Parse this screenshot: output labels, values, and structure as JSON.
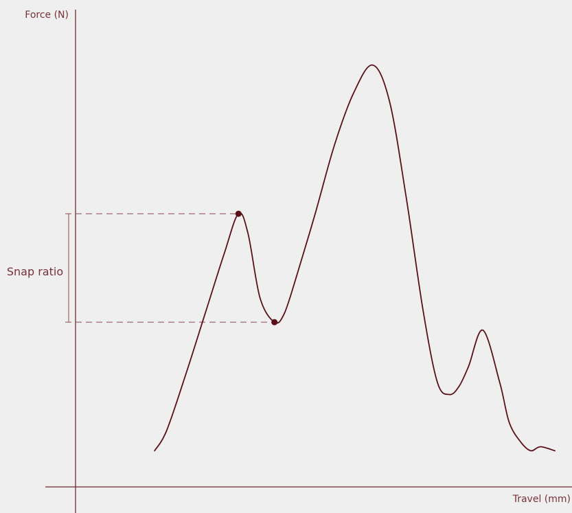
{
  "chart_data": {
    "type": "line",
    "title": "",
    "xlabel": "Travel (mm)",
    "ylabel": "Force (N)",
    "grid": false,
    "legend": "none",
    "ticks": false,
    "xlim": [
      0,
      10
    ],
    "ylim": [
      0,
      10
    ],
    "series": [
      {
        "x": [
          1.65,
          1.9,
          2.3,
          2.7,
          3.1,
          3.4,
          3.6,
          3.85,
          4.15,
          4.35,
          4.6,
          5.0,
          5.4,
          5.8,
          6.2,
          6.55,
          6.9,
          7.25,
          7.55,
          7.8,
          8.0,
          8.2,
          8.5,
          8.85,
          9.05,
          9.3,
          9.5,
          9.7,
          10.0
        ],
        "y": [
          0.9,
          1.4,
          2.8,
          4.3,
          5.8,
          6.8,
          6.3,
          4.7,
          4.1,
          4.3,
          5.2,
          6.8,
          8.5,
          9.8,
          10.5,
          9.6,
          7.2,
          4.4,
          2.6,
          2.3,
          2.5,
          3.0,
          3.9,
          2.6,
          1.6,
          1.1,
          0.9,
          1.0,
          0.9
        ]
      }
    ],
    "markers": [
      {
        "x": 3.4,
        "y": 6.8
      },
      {
        "x": 4.15,
        "y": 4.1
      }
    ],
    "annotations": [
      {
        "text": "Snap ratio",
        "from_y": 4.1,
        "to_y": 6.8
      }
    ],
    "colors": {
      "axis": "#6b2a31",
      "curve": "#5a0f18",
      "guide": "#8a4a50",
      "label": "#7a3038",
      "background": "#efefef"
    }
  }
}
